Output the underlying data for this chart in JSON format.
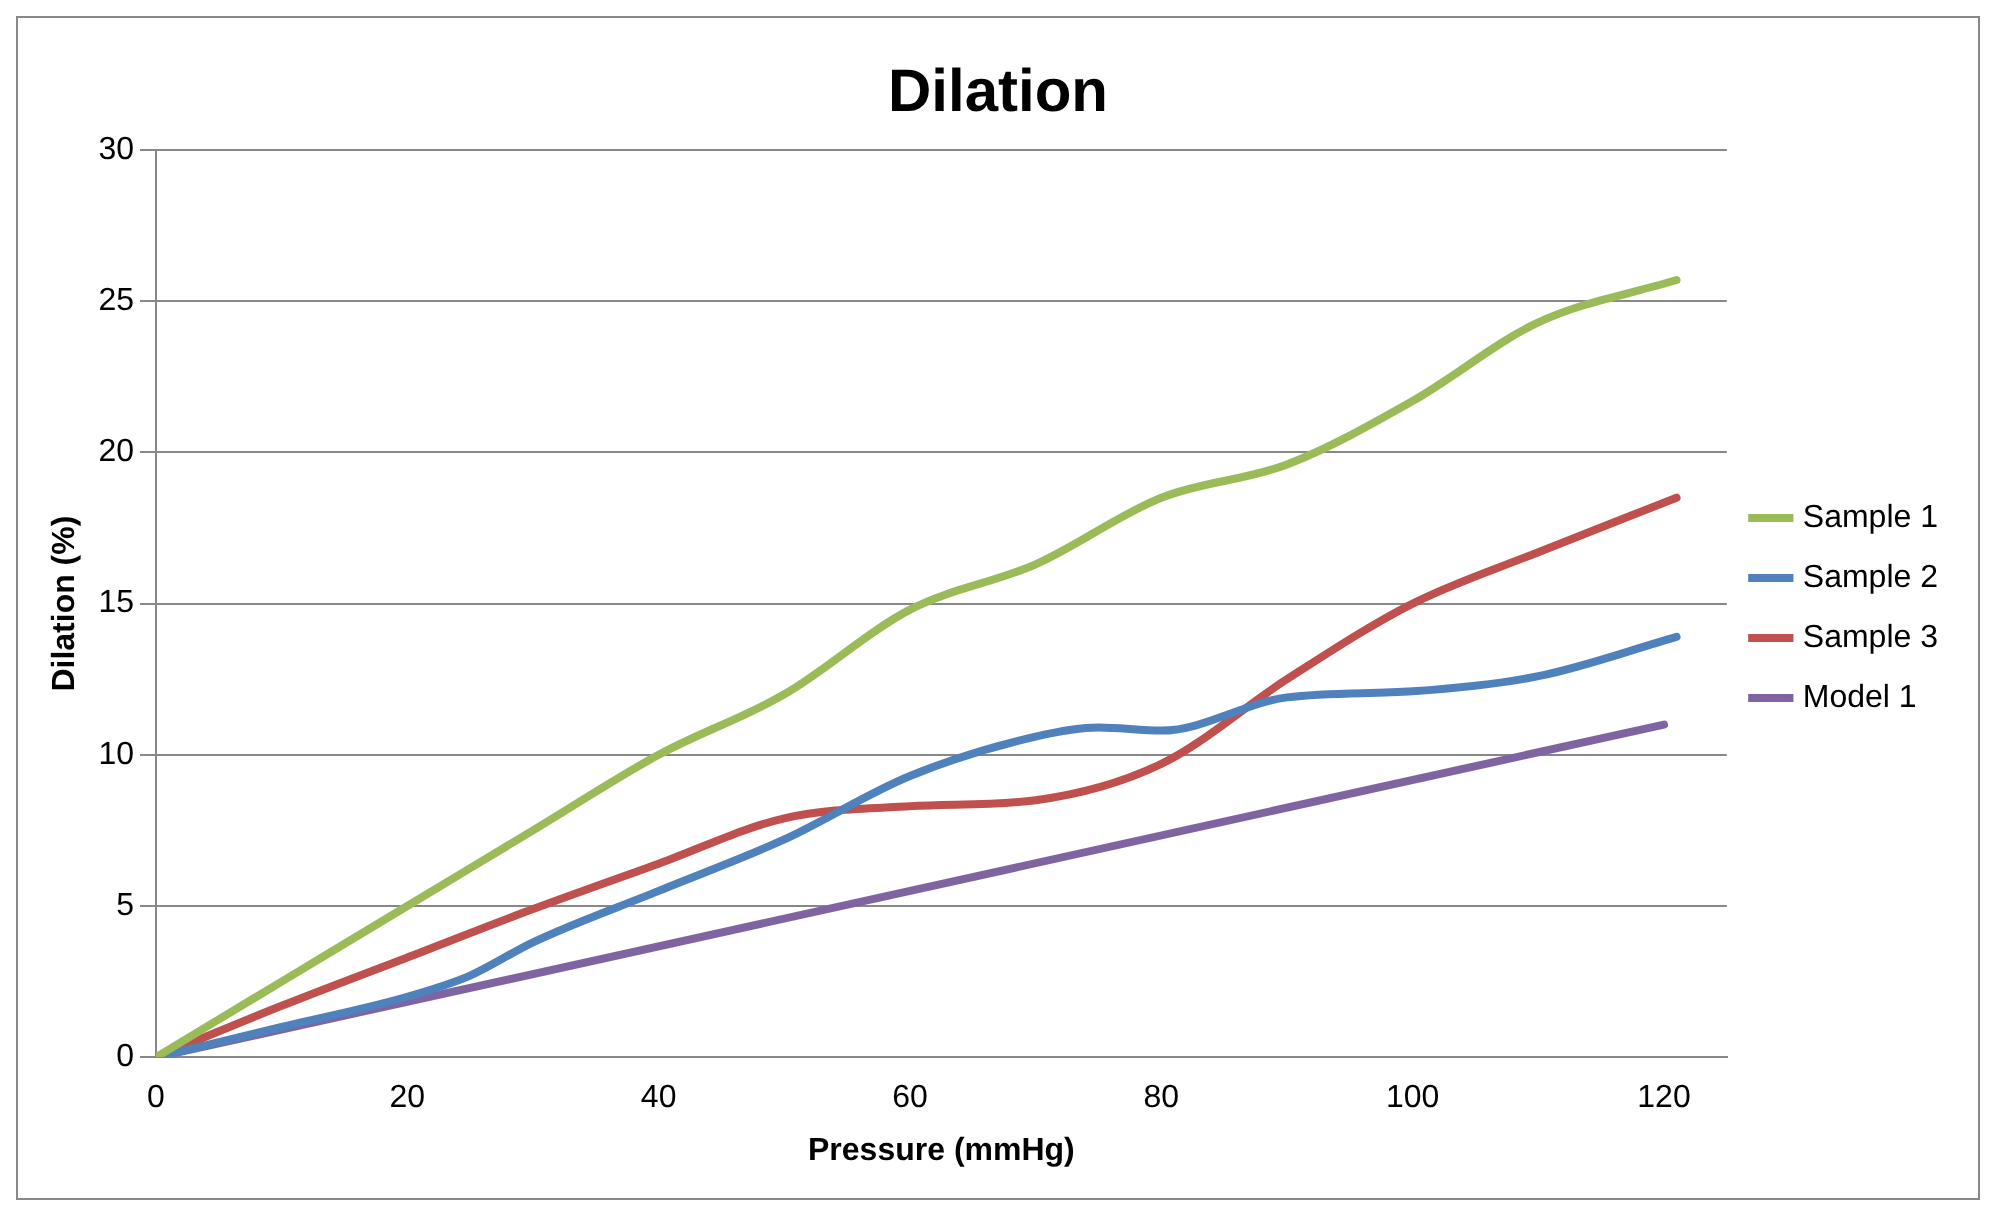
{
  "chart_data": {
    "type": "line",
    "title": "Dilation",
    "xlabel": "Pressure (mmHg)",
    "ylabel": "Dilation (%)",
    "xlim": [
      0,
      125
    ],
    "xticks": [
      0,
      20,
      40,
      60,
      80,
      100,
      120
    ],
    "ylim": [
      0,
      30
    ],
    "yticks": [
      0,
      5,
      10,
      15,
      20,
      25,
      30
    ],
    "grid": "y",
    "legend": "right",
    "marker": "none",
    "line_style": "solid",
    "series": [
      {
        "name": "Sample 1",
        "color": "#9bbb59",
        "x": [
          0,
          10,
          20,
          30,
          40,
          50,
          60,
          70,
          80,
          90,
          100,
          110,
          121
        ],
        "values": [
          0,
          2.5,
          5,
          7.5,
          10,
          12,
          14.8,
          16.3,
          18.5,
          19.6,
          21.7,
          24.3,
          25.7
        ]
      },
      {
        "name": "Sample 2",
        "color": "#4f81bd",
        "x": [
          0,
          10,
          20,
          25,
          30,
          40,
          50,
          60,
          70,
          75,
          80,
          90,
          100,
          110,
          121
        ],
        "values": [
          0,
          1,
          2,
          2.7,
          3.8,
          5.5,
          7.2,
          9.3,
          10.6,
          10.9,
          10.8,
          11.9,
          12.1,
          12.6,
          13.9
        ]
      },
      {
        "name": "Sample 3",
        "color": "#c0504d",
        "x": [
          0,
          10,
          20,
          30,
          40,
          50,
          60,
          70,
          80,
          90,
          100,
          110,
          121
        ],
        "values": [
          0,
          1.7,
          3.3,
          4.9,
          6.4,
          7.9,
          8.3,
          8.5,
          9.7,
          12.5,
          15,
          16.7,
          18.5
        ]
      },
      {
        "name": "Model 1",
        "color": "#8064a2",
        "x": [
          0,
          120
        ],
        "values": [
          0,
          11
        ]
      }
    ]
  }
}
